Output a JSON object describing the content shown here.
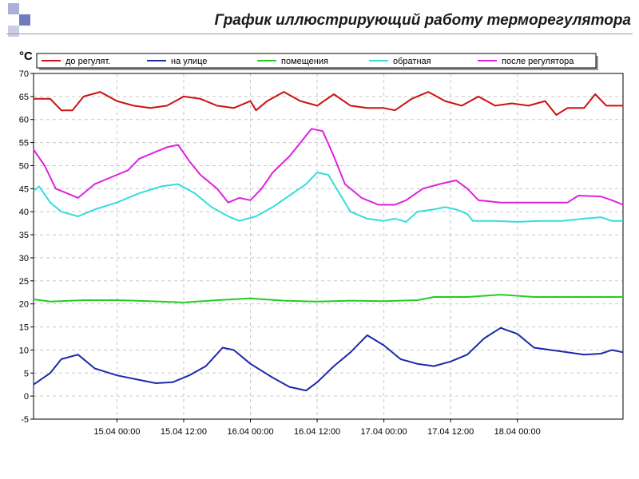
{
  "slide": {
    "title": "График иллюстрирующий работу терморегулятора",
    "corner_colors": [
      "#aab0d8",
      "#6f7abf",
      "#c9cde8"
    ]
  },
  "chart_data": {
    "type": "line",
    "unit_label": "°C",
    "ylim": [
      -5,
      70
    ],
    "y_ticks": [
      -5,
      0,
      5,
      10,
      15,
      20,
      25,
      30,
      35,
      40,
      45,
      50,
      55,
      60,
      65,
      70
    ],
    "xlim": [
      "2025-04-14T09:00",
      "2025-04-18T19:00"
    ],
    "x_ticks": [
      {
        "x": "2025-04-15T00:00",
        "label": "15.04 00:00"
      },
      {
        "x": "2025-04-15T12:00",
        "label": "15.04 12:00"
      },
      {
        "x": "2025-04-16T00:00",
        "label": "16.04 00:00"
      },
      {
        "x": "2025-04-16T12:00",
        "label": "16.04 12:00"
      },
      {
        "x": "2025-04-17T00:00",
        "label": "17.04 00:00"
      },
      {
        "x": "2025-04-17T12:00",
        "label": "17.04 12:00"
      },
      {
        "x": "2025-04-18T00:00",
        "label": "18.04 00:00"
      }
    ],
    "grid": true,
    "legend_position": "top",
    "series": [
      {
        "name": "до регулят.",
        "color": "#cc1111",
        "points": [
          [
            "2025-04-14T09:00",
            64.5
          ],
          [
            "2025-04-14T12:00",
            64.5
          ],
          [
            "2025-04-14T14:00",
            62
          ],
          [
            "2025-04-14T16:00",
            62
          ],
          [
            "2025-04-14T18:00",
            65
          ],
          [
            "2025-04-14T21:00",
            66
          ],
          [
            "2025-04-15T00:00",
            64
          ],
          [
            "2025-04-15T03:00",
            63
          ],
          [
            "2025-04-15T06:00",
            62.5
          ],
          [
            "2025-04-15T09:00",
            63
          ],
          [
            "2025-04-15T12:00",
            65
          ],
          [
            "2025-04-15T15:00",
            64.5
          ],
          [
            "2025-04-15T18:00",
            63
          ],
          [
            "2025-04-15T21:00",
            62.5
          ],
          [
            "2025-04-16T00:00",
            64
          ],
          [
            "2025-04-16T01:00",
            62
          ],
          [
            "2025-04-16T03:00",
            64
          ],
          [
            "2025-04-16T06:00",
            66
          ],
          [
            "2025-04-16T09:00",
            64
          ],
          [
            "2025-04-16T12:00",
            63
          ],
          [
            "2025-04-16T15:00",
            65.5
          ],
          [
            "2025-04-16T18:00",
            63
          ],
          [
            "2025-04-16T21:00",
            62.5
          ],
          [
            "2025-04-17T00:00",
            62.5
          ],
          [
            "2025-04-17T02:00",
            62
          ],
          [
            "2025-04-17T05:00",
            64.5
          ],
          [
            "2025-04-17T08:00",
            66
          ],
          [
            "2025-04-17T11:00",
            64
          ],
          [
            "2025-04-17T14:00",
            63
          ],
          [
            "2025-04-17T17:00",
            65
          ],
          [
            "2025-04-17T20:00",
            63
          ],
          [
            "2025-04-17T23:00",
            63.5
          ],
          [
            "2025-04-18T02:00",
            63
          ],
          [
            "2025-04-18T05:00",
            64
          ],
          [
            "2025-04-18T07:00",
            61
          ],
          [
            "2025-04-18T09:00",
            62.5
          ],
          [
            "2025-04-18T12:00",
            62.5
          ],
          [
            "2025-04-18T14:00",
            65.5
          ],
          [
            "2025-04-18T16:00",
            63
          ],
          [
            "2025-04-18T19:00",
            63
          ]
        ]
      },
      {
        "name": "на улице",
        "color": "#1a2aa8",
        "points": [
          [
            "2025-04-14T09:00",
            2.5
          ],
          [
            "2025-04-14T12:00",
            5
          ],
          [
            "2025-04-14T14:00",
            8
          ],
          [
            "2025-04-14T17:00",
            9
          ],
          [
            "2025-04-14T20:00",
            6
          ],
          [
            "2025-04-15T00:00",
            4.5
          ],
          [
            "2025-04-15T04:00",
            3.5
          ],
          [
            "2025-04-15T07:00",
            2.8
          ],
          [
            "2025-04-15T10:00",
            3
          ],
          [
            "2025-04-15T13:00",
            4.5
          ],
          [
            "2025-04-15T16:00",
            6.5
          ],
          [
            "2025-04-15T19:00",
            10.5
          ],
          [
            "2025-04-15T21:00",
            10
          ],
          [
            "2025-04-16T00:00",
            7
          ],
          [
            "2025-04-16T04:00",
            4
          ],
          [
            "2025-04-16T07:00",
            2
          ],
          [
            "2025-04-16T10:00",
            1.2
          ],
          [
            "2025-04-16T12:00",
            3
          ],
          [
            "2025-04-16T15:00",
            6.5
          ],
          [
            "2025-04-16T18:00",
            9.5
          ],
          [
            "2025-04-16T21:00",
            13.2
          ],
          [
            "2025-04-17T00:00",
            11
          ],
          [
            "2025-04-17T03:00",
            8
          ],
          [
            "2025-04-17T06:00",
            7
          ],
          [
            "2025-04-17T09:00",
            6.5
          ],
          [
            "2025-04-17T12:00",
            7.5
          ],
          [
            "2025-04-17T15:00",
            9
          ],
          [
            "2025-04-17T18:00",
            12.5
          ],
          [
            "2025-04-17T21:00",
            14.8
          ],
          [
            "2025-04-18T00:00",
            13.5
          ],
          [
            "2025-04-18T03:00",
            10.5
          ],
          [
            "2025-04-18T06:00",
            10
          ],
          [
            "2025-04-18T09:00",
            9.5
          ],
          [
            "2025-04-18T12:00",
            9
          ],
          [
            "2025-04-18T15:00",
            9.2
          ],
          [
            "2025-04-18T17:00",
            10
          ],
          [
            "2025-04-18T19:00",
            9.5
          ]
        ]
      },
      {
        "name": "помещения",
        "color": "#22cc22",
        "points": [
          [
            "2025-04-14T09:00",
            21
          ],
          [
            "2025-04-14T12:00",
            20.5
          ],
          [
            "2025-04-14T18:00",
            20.8
          ],
          [
            "2025-04-15T00:00",
            20.8
          ],
          [
            "2025-04-15T06:00",
            20.6
          ],
          [
            "2025-04-15T12:00",
            20.3
          ],
          [
            "2025-04-15T18:00",
            20.8
          ],
          [
            "2025-04-16T00:00",
            21.2
          ],
          [
            "2025-04-16T06:00",
            20.7
          ],
          [
            "2025-04-16T12:00",
            20.5
          ],
          [
            "2025-04-16T18:00",
            20.7
          ],
          [
            "2025-04-17T00:00",
            20.6
          ],
          [
            "2025-04-17T06:00",
            20.8
          ],
          [
            "2025-04-17T09:00",
            21.5
          ],
          [
            "2025-04-17T15:00",
            21.5
          ],
          [
            "2025-04-17T21:00",
            22
          ],
          [
            "2025-04-18T03:00",
            21.5
          ],
          [
            "2025-04-18T09:00",
            21.5
          ],
          [
            "2025-04-18T19:00",
            21.5
          ]
        ]
      },
      {
        "name": "обратная",
        "color": "#33dddd",
        "points": [
          [
            "2025-04-14T09:00",
            44.5
          ],
          [
            "2025-04-14T10:00",
            45.5
          ],
          [
            "2025-04-14T12:00",
            42
          ],
          [
            "2025-04-14T14:00",
            40
          ],
          [
            "2025-04-14T17:00",
            39
          ],
          [
            "2025-04-14T20:00",
            40.5
          ],
          [
            "2025-04-15T00:00",
            42
          ],
          [
            "2025-04-15T04:00",
            44
          ],
          [
            "2025-04-15T08:00",
            45.5
          ],
          [
            "2025-04-15T11:00",
            46
          ],
          [
            "2025-04-15T14:00",
            44
          ],
          [
            "2025-04-15T17:00",
            41
          ],
          [
            "2025-04-15T20:00",
            39
          ],
          [
            "2025-04-15T22:00",
            38
          ],
          [
            "2025-04-16T01:00",
            39
          ],
          [
            "2025-04-16T04:00",
            41
          ],
          [
            "2025-04-16T07:00",
            43.5
          ],
          [
            "2025-04-16T10:00",
            46
          ],
          [
            "2025-04-16T12:00",
            48.5
          ],
          [
            "2025-04-16T14:00",
            48
          ],
          [
            "2025-04-16T16:00",
            44
          ],
          [
            "2025-04-16T18:00",
            40
          ],
          [
            "2025-04-16T21:00",
            38.5
          ],
          [
            "2025-04-17T00:00",
            38
          ],
          [
            "2025-04-17T02:00",
            38.5
          ],
          [
            "2025-04-17T04:00",
            37.8
          ],
          [
            "2025-04-17T06:00",
            40
          ],
          [
            "2025-04-17T09:00",
            40.5
          ],
          [
            "2025-04-17T11:00",
            41
          ],
          [
            "2025-04-17T13:00",
            40.5
          ],
          [
            "2025-04-17T15:00",
            39.5
          ],
          [
            "2025-04-17T16:00",
            38
          ],
          [
            "2025-04-17T20:00",
            38
          ],
          [
            "2025-04-18T00:00",
            37.8
          ],
          [
            "2025-04-18T04:00",
            38
          ],
          [
            "2025-04-18T08:00",
            38
          ],
          [
            "2025-04-18T12:00",
            38.5
          ],
          [
            "2025-04-18T15:00",
            38.8
          ],
          [
            "2025-04-18T17:00",
            38
          ],
          [
            "2025-04-18T19:00",
            38
          ]
        ]
      },
      {
        "name": "после регулятора",
        "color": "#dd22dd",
        "points": [
          [
            "2025-04-14T09:00",
            53.5
          ],
          [
            "2025-04-14T11:00",
            50
          ],
          [
            "2025-04-14T13:00",
            45
          ],
          [
            "2025-04-14T15:00",
            44
          ],
          [
            "2025-04-14T17:00",
            43
          ],
          [
            "2025-04-14T20:00",
            46
          ],
          [
            "2025-04-15T00:00",
            48
          ],
          [
            "2025-04-15T02:00",
            49
          ],
          [
            "2025-04-15T04:00",
            51.5
          ],
          [
            "2025-04-15T07:00",
            53
          ],
          [
            "2025-04-15T09:00",
            54
          ],
          [
            "2025-04-15T11:00",
            54.5
          ],
          [
            "2025-04-15T13:00",
            51
          ],
          [
            "2025-04-15T15:00",
            48
          ],
          [
            "2025-04-15T18:00",
            45
          ],
          [
            "2025-04-15T20:00",
            42
          ],
          [
            "2025-04-15T22:00",
            43
          ],
          [
            "2025-04-16T00:00",
            42.5
          ],
          [
            "2025-04-16T02:00",
            45
          ],
          [
            "2025-04-16T04:00",
            48.5
          ],
          [
            "2025-04-16T07:00",
            52
          ],
          [
            "2025-04-16T09:00",
            55
          ],
          [
            "2025-04-16T11:00",
            58
          ],
          [
            "2025-04-16T13:00",
            57.5
          ],
          [
            "2025-04-16T15:00",
            52
          ],
          [
            "2025-04-16T17:00",
            46
          ],
          [
            "2025-04-16T20:00",
            43
          ],
          [
            "2025-04-16T23:00",
            41.5
          ],
          [
            "2025-04-17T02:00",
            41.5
          ],
          [
            "2025-04-17T04:00",
            42.5
          ],
          [
            "2025-04-17T07:00",
            45
          ],
          [
            "2025-04-17T10:00",
            46
          ],
          [
            "2025-04-17T13:00",
            46.8
          ],
          [
            "2025-04-17T15:00",
            45
          ],
          [
            "2025-04-17T17:00",
            42.5
          ],
          [
            "2025-04-17T21:00",
            42
          ],
          [
            "2025-04-18T01:00",
            42
          ],
          [
            "2025-04-18T05:00",
            42
          ],
          [
            "2025-04-18T09:00",
            42
          ],
          [
            "2025-04-18T11:00",
            43.5
          ],
          [
            "2025-04-18T15:00",
            43.3
          ],
          [
            "2025-04-18T17:00",
            42.5
          ],
          [
            "2025-04-18T19:00",
            41.5
          ]
        ]
      }
    ]
  }
}
